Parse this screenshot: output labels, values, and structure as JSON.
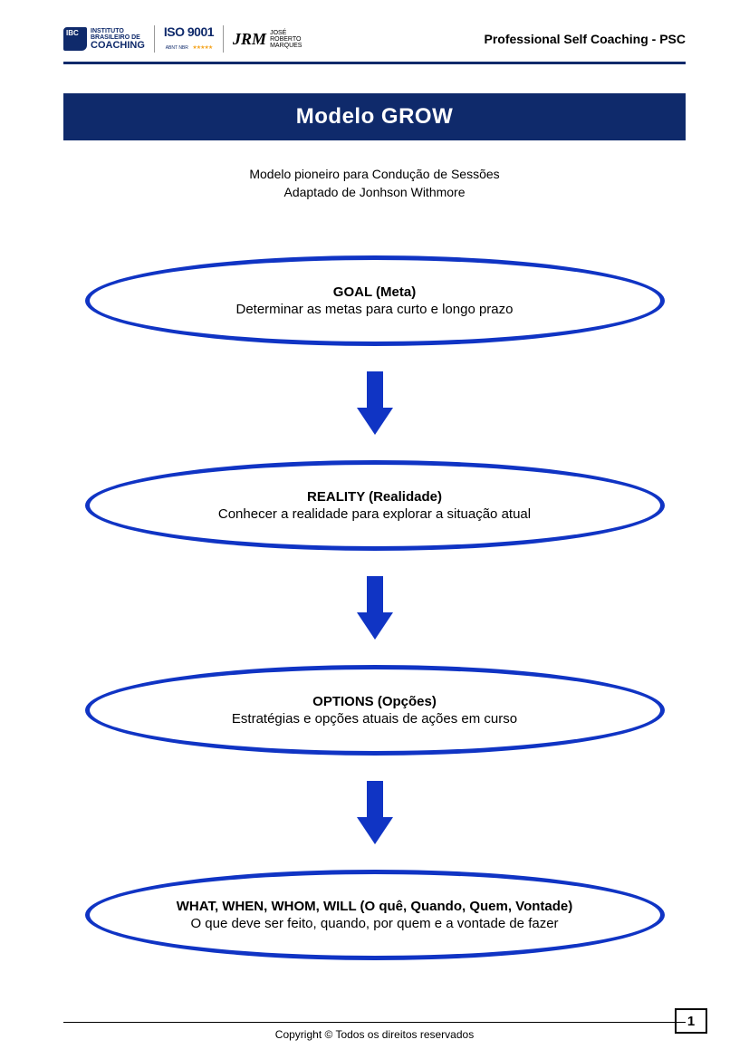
{
  "colors": {
    "brand_dark": "#0f2a6b",
    "brand_blue": "#1034c4",
    "accent_gold": "#f5a623",
    "text": "#000000",
    "background": "#ffffff"
  },
  "header": {
    "logo_ibc": {
      "line1": "INSTITUTO",
      "line2": "BRASILEIRO DE",
      "line3": "COACHING"
    },
    "logo_iso": {
      "main": "ISO 9001",
      "sub": "ABNT NBR",
      "stars": "★★★★★"
    },
    "logo_jrm": {
      "mark": "JRM",
      "line1": "JOSÉ",
      "line2": "ROBERTO",
      "line3": "MARQUES"
    },
    "course_name": "Professional Self Coaching - PSC"
  },
  "title": "Modelo GROW",
  "subtitle": {
    "line1": "Modelo pioneiro para Condução de Sessões",
    "line2": "Adaptado de Jonhson Withmore"
  },
  "diagram": {
    "type": "flowchart",
    "direction": "vertical",
    "node_shape": "ellipse",
    "ellipse_border_color": "#1034c4",
    "ellipse_border_width": 5,
    "arrow_color": "#1034c4",
    "nodes": [
      {
        "title": "GOAL (Meta)",
        "desc": "Determinar as metas para curto e longo prazo"
      },
      {
        "title": "REALITY (Realidade)",
        "desc": "Conhecer a realidade para explorar a situação atual"
      },
      {
        "title": "OPTIONS (Opções)",
        "desc": "Estratégias e opções atuais de ações em curso"
      },
      {
        "title": "WHAT, WHEN, WHOM, WILL (O quê, Quando, Quem, Vontade)",
        "desc": "O que deve ser feito, quando, por quem e a vontade de fazer"
      }
    ]
  },
  "footer": {
    "copyright": "Copyright © Todos os direitos reservados",
    "page_number": "1"
  }
}
